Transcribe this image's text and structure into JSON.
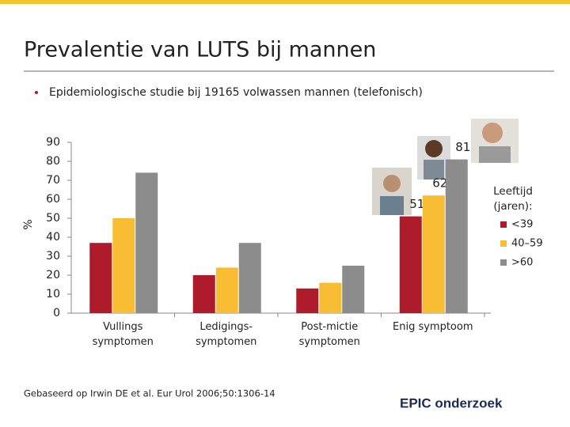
{
  "header": {
    "title": "Prevalentie van LUTS bij mannen",
    "bullet": "Epidemiologische studie bij 19165 volwassen mannen (telefonisch)"
  },
  "chart_data": {
    "type": "bar",
    "y_label": "%",
    "categories": [
      "Vullings\nsymptomen",
      "Ledigings-\nsymptomen",
      "Post-mictie\nsymptomen",
      "Enig symptoom"
    ],
    "series": [
      {
        "name": "<39",
        "color": "#ae1c2c",
        "values": [
          37,
          20,
          13,
          51
        ]
      },
      {
        "name": "40–59",
        "color": "#f9bd33",
        "values": [
          50,
          24,
          16,
          62
        ]
      },
      {
        "name": ">60",
        "color": "#8c8c8c",
        "values": [
          74,
          37,
          25,
          81
        ]
      }
    ],
    "ylim": [
      0,
      90
    ],
    "yticks": [
      0,
      10,
      20,
      30,
      40,
      50,
      60,
      70,
      80,
      90
    ],
    "legend_title": "Leeftijd\n(jaren):"
  },
  "footer": {
    "source": "Gebaseerd op Irwin DE et al. Eur Urol 2006;50:1306-14",
    "brand": "EPIC onderzoek"
  }
}
